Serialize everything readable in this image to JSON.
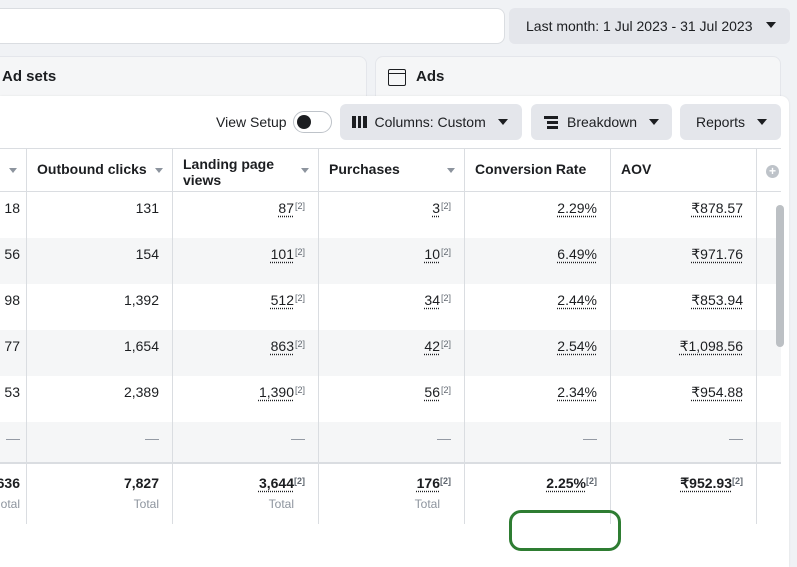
{
  "date_range": {
    "label": "Last month: 1 Jul 2023 - 31 Jul 2023"
  },
  "tabs": {
    "adsets": "Ad sets",
    "ads": "Ads"
  },
  "toolbar": {
    "view_setup": "View Setup",
    "columns": "Columns: Custom",
    "breakdown": "Breakdown",
    "reports": "Reports"
  },
  "columns": {
    "outbound_clicks": "Outbound clicks",
    "landing_page_views": "Landing page views",
    "purchases": "Purchases",
    "conversion_rate": "Conversion Rate",
    "aov": "AOV"
  },
  "note_marker": "[2]",
  "rows": [
    {
      "partial": "18",
      "outbound_clicks": "131",
      "landing_page_views": "87",
      "purchases": "3",
      "conversion_rate": "2.29%",
      "aov": "₹878.57"
    },
    {
      "partial": "56",
      "outbound_clicks": "154",
      "landing_page_views": "101",
      "purchases": "10",
      "conversion_rate": "6.49%",
      "aov": "₹971.76"
    },
    {
      "partial": "98",
      "outbound_clicks": "1,392",
      "landing_page_views": "512",
      "purchases": "34",
      "conversion_rate": "2.44%",
      "aov": "₹853.94"
    },
    {
      "partial": "77",
      "outbound_clicks": "1,654",
      "landing_page_views": "863",
      "purchases": "42",
      "conversion_rate": "2.54%",
      "aov": "₹1,098.56"
    },
    {
      "partial": "53",
      "outbound_clicks": "2,389",
      "landing_page_views": "1,390",
      "purchases": "56",
      "conversion_rate": "2.34%",
      "aov": "₹954.88"
    },
    {
      "partial": "—",
      "outbound_clicks": "—",
      "landing_page_views": "—",
      "purchases": "—",
      "conversion_rate": "—",
      "aov": "—"
    },
    {
      "partial": "—",
      "outbound_clicks": "—",
      "landing_page_views": "—",
      "purchases": "—",
      "conversion_rate": "—",
      "aov": "—"
    }
  ],
  "totals": {
    "partial": "636",
    "partial_sub": "otal",
    "outbound_clicks": "7,827",
    "landing_page_views": "3,644",
    "purchases": "176",
    "conversion_rate": "2.25%",
    "aov": "₹952.93",
    "sub": "Total"
  },
  "colors": {
    "highlight": "#2e7d32",
    "toolbar_button": "#e4e6eb"
  }
}
